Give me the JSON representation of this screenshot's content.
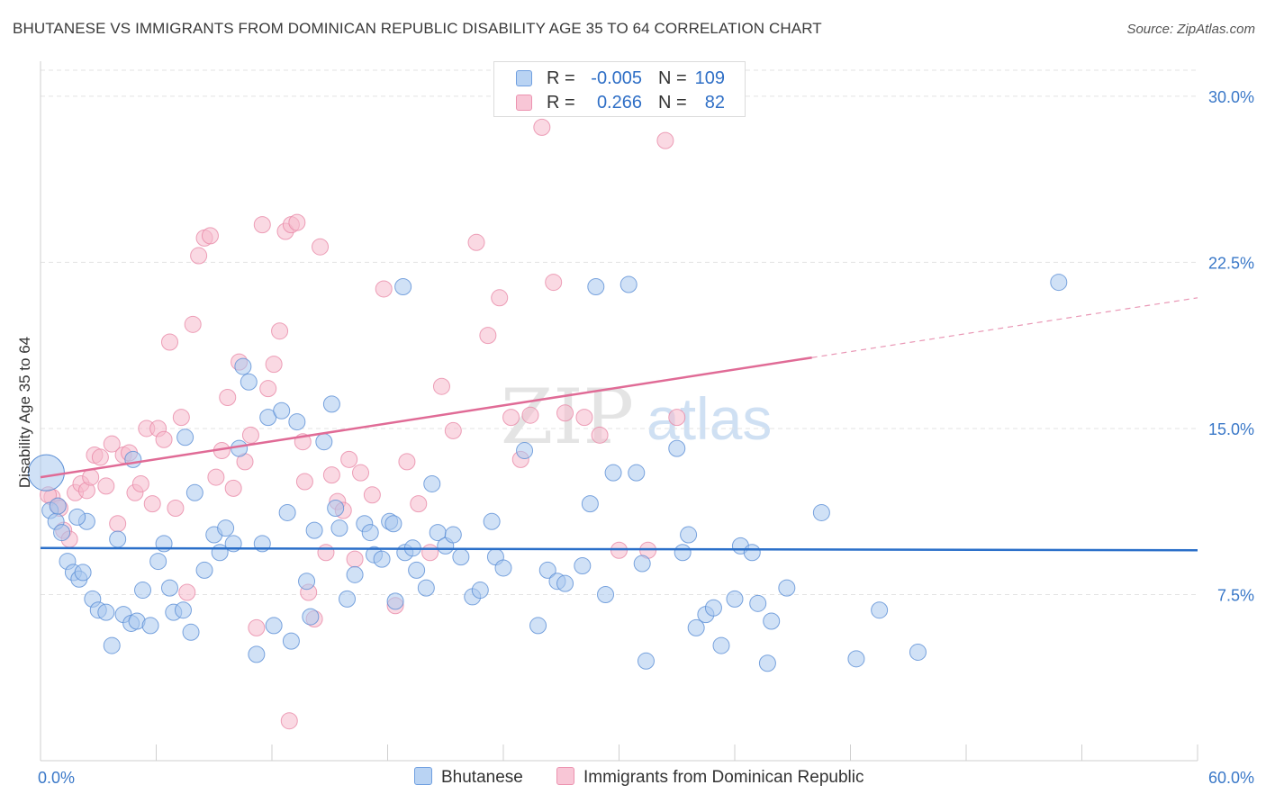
{
  "header": {
    "title": "BHUTANESE VS IMMIGRANTS FROM DOMINICAN REPUBLIC DISABILITY AGE 35 TO 64 CORRELATION CHART",
    "source": "Source: ZipAtlas.com"
  },
  "legend": {
    "rows": [
      {
        "r_label": "R =",
        "r_value": "-0.005",
        "n_label": "N =",
        "n_value": "109"
      },
      {
        "r_label": "R =",
        "r_value": "0.266",
        "n_label": "N =",
        "n_value": "82"
      }
    ]
  },
  "bottom_legend": [
    "Bhutanese",
    "Immigrants from Dominican Republic"
  ],
  "watermark": {
    "zip": "ZIP",
    "atlas": "atlas"
  },
  "colors": {
    "blue_fill": "#a9c8ef",
    "blue_stroke": "#5b8fd6",
    "blue_line": "#2a6fc9",
    "pink_fill": "#f6b9cc",
    "pink_stroke": "#e98aa8",
    "pink_line": "#e06b96",
    "tick_label": "#3a78c8",
    "grid": "#e3e3e3"
  },
  "chart_data": {
    "type": "scatter",
    "title": "BHUTANESE VS IMMIGRANTS FROM DOMINICAN REPUBLIC DISABILITY AGE 35 TO 64 CORRELATION CHART",
    "xlabel": "",
    "ylabel": "Disability Age 35 to 64",
    "xlim": [
      0,
      60
    ],
    "ylim": [
      0,
      31.5
    ],
    "x_tick_labels": [
      "0.0%",
      "60.0%"
    ],
    "y_ticks": [
      7.5,
      15.0,
      22.5,
      30.0
    ],
    "y_tick_labels": [
      "7.5%",
      "15.0%",
      "22.5%",
      "30.0%"
    ],
    "grid": "horizontal dashed",
    "legend_placement": "top-center",
    "series": [
      {
        "name": "Bhutanese",
        "r": -0.005,
        "n": 109,
        "trend": {
          "x": [
            0,
            60
          ],
          "y": [
            9.6,
            9.5
          ],
          "dashed_from": null
        },
        "points": [
          [
            0.5,
            11.3
          ],
          [
            0.8,
            10.8
          ],
          [
            1.1,
            10.3
          ],
          [
            1.4,
            9.0
          ],
          [
            1.7,
            8.5
          ],
          [
            2.0,
            8.2
          ],
          [
            2.2,
            8.5
          ],
          [
            2.7,
            7.3
          ],
          [
            3.0,
            6.8
          ],
          [
            3.4,
            6.7
          ],
          [
            3.7,
            5.2
          ],
          [
            4.0,
            10.0
          ],
          [
            4.3,
            6.6
          ],
          [
            4.7,
            6.2
          ],
          [
            5.0,
            6.3
          ],
          [
            5.3,
            7.7
          ],
          [
            5.7,
            6.1
          ],
          [
            6.1,
            9.0
          ],
          [
            6.4,
            9.8
          ],
          [
            6.7,
            7.8
          ],
          [
            6.9,
            6.7
          ],
          [
            7.4,
            6.8
          ],
          [
            7.8,
            5.8
          ],
          [
            8.0,
            12.1
          ],
          [
            8.5,
            8.6
          ],
          [
            9.0,
            10.2
          ],
          [
            9.3,
            9.4
          ],
          [
            9.6,
            10.5
          ],
          [
            10.0,
            9.8
          ],
          [
            10.3,
            14.1
          ],
          [
            10.8,
            17.1
          ],
          [
            11.2,
            4.8
          ],
          [
            11.5,
            9.8
          ],
          [
            11.8,
            15.5
          ],
          [
            12.1,
            6.1
          ],
          [
            12.5,
            15.8
          ],
          [
            12.8,
            11.2
          ],
          [
            13.0,
            5.4
          ],
          [
            13.3,
            15.3
          ],
          [
            13.8,
            8.1
          ],
          [
            14.0,
            6.5
          ],
          [
            14.2,
            10.4
          ],
          [
            14.7,
            14.4
          ],
          [
            15.1,
            16.1
          ],
          [
            15.3,
            11.4
          ],
          [
            15.5,
            10.5
          ],
          [
            15.9,
            7.3
          ],
          [
            16.3,
            8.4
          ],
          [
            16.8,
            10.7
          ],
          [
            17.1,
            10.3
          ],
          [
            17.3,
            9.3
          ],
          [
            17.7,
            9.1
          ],
          [
            18.1,
            10.8
          ],
          [
            18.3,
            10.7
          ],
          [
            18.4,
            7.2
          ],
          [
            18.9,
            9.4
          ],
          [
            19.3,
            9.6
          ],
          [
            19.5,
            8.6
          ],
          [
            20.0,
            7.8
          ],
          [
            20.3,
            12.5
          ],
          [
            20.6,
            10.3
          ],
          [
            21.0,
            9.7
          ],
          [
            21.4,
            10.2
          ],
          [
            21.8,
            9.2
          ],
          [
            22.4,
            7.4
          ],
          [
            22.8,
            7.7
          ],
          [
            23.4,
            10.8
          ],
          [
            23.6,
            9.2
          ],
          [
            24.0,
            8.7
          ],
          [
            25.1,
            14.0
          ],
          [
            25.8,
            6.1
          ],
          [
            26.3,
            8.6
          ],
          [
            26.8,
            8.1
          ],
          [
            27.2,
            8.0
          ],
          [
            28.1,
            8.8
          ],
          [
            28.5,
            11.6
          ],
          [
            29.3,
            7.5
          ],
          [
            29.7,
            13.0
          ],
          [
            30.5,
            21.5
          ],
          [
            30.9,
            13.0
          ],
          [
            31.2,
            8.9
          ],
          [
            31.4,
            4.5
          ],
          [
            33.0,
            14.1
          ],
          [
            33.3,
            9.4
          ],
          [
            33.6,
            10.2
          ],
          [
            34.0,
            6.0
          ],
          [
            34.5,
            6.6
          ],
          [
            34.9,
            6.9
          ],
          [
            35.3,
            5.2
          ],
          [
            36.0,
            7.3
          ],
          [
            36.3,
            9.7
          ],
          [
            36.9,
            9.4
          ],
          [
            37.2,
            7.1
          ],
          [
            37.7,
            4.4
          ],
          [
            37.9,
            6.3
          ],
          [
            38.7,
            7.8
          ],
          [
            40.5,
            11.2
          ],
          [
            42.3,
            4.6
          ],
          [
            43.5,
            6.8
          ],
          [
            45.5,
            4.9
          ],
          [
            52.8,
            21.6
          ],
          [
            28.8,
            21.4
          ],
          [
            18.8,
            21.4
          ],
          [
            10.5,
            17.8
          ],
          [
            7.5,
            14.6
          ],
          [
            4.8,
            13.6
          ],
          [
            2.4,
            10.8
          ],
          [
            1.9,
            11.0
          ],
          [
            0.9,
            11.5
          ]
        ]
      },
      {
        "name": "Immigrants from Dominican Republic",
        "r": 0.266,
        "n": 82,
        "trend": {
          "x": [
            0,
            40,
            60
          ],
          "y": [
            12.8,
            18.2,
            20.9
          ],
          "dashed_from": 40
        },
        "points": [
          [
            0.6,
            11.9
          ],
          [
            0.9,
            11.5
          ],
          [
            1.2,
            10.4
          ],
          [
            1.5,
            10.0
          ],
          [
            1.8,
            12.1
          ],
          [
            2.1,
            12.5
          ],
          [
            2.4,
            12.2
          ],
          [
            2.8,
            13.8
          ],
          [
            3.1,
            13.7
          ],
          [
            3.4,
            12.4
          ],
          [
            3.7,
            14.3
          ],
          [
            4.0,
            10.7
          ],
          [
            4.3,
            13.8
          ],
          [
            4.6,
            13.9
          ],
          [
            4.9,
            12.1
          ],
          [
            5.2,
            12.5
          ],
          [
            5.5,
            15.0
          ],
          [
            5.8,
            11.6
          ],
          [
            6.1,
            15.0
          ],
          [
            6.4,
            14.5
          ],
          [
            6.7,
            18.9
          ],
          [
            7.0,
            11.4
          ],
          [
            7.3,
            15.5
          ],
          [
            7.6,
            7.6
          ],
          [
            7.9,
            19.7
          ],
          [
            8.2,
            22.8
          ],
          [
            8.5,
            23.6
          ],
          [
            8.8,
            23.7
          ],
          [
            9.1,
            12.8
          ],
          [
            9.4,
            14.0
          ],
          [
            9.7,
            16.4
          ],
          [
            10.0,
            12.3
          ],
          [
            10.3,
            18.0
          ],
          [
            10.6,
            13.5
          ],
          [
            10.9,
            14.7
          ],
          [
            11.2,
            6.0
          ],
          [
            11.5,
            24.2
          ],
          [
            11.8,
            16.8
          ],
          [
            12.1,
            17.9
          ],
          [
            12.4,
            19.4
          ],
          [
            12.7,
            23.9
          ],
          [
            13.0,
            24.2
          ],
          [
            13.3,
            24.3
          ],
          [
            13.6,
            14.4
          ],
          [
            13.9,
            7.6
          ],
          [
            14.2,
            6.4
          ],
          [
            14.5,
            23.2
          ],
          [
            14.8,
            9.4
          ],
          [
            15.1,
            12.9
          ],
          [
            15.4,
            11.7
          ],
          [
            15.7,
            11.3
          ],
          [
            16.0,
            13.6
          ],
          [
            16.3,
            9.1
          ],
          [
            16.6,
            13.0
          ],
          [
            17.2,
            12.0
          ],
          [
            17.8,
            21.3
          ],
          [
            18.4,
            7.0
          ],
          [
            19.0,
            13.5
          ],
          [
            19.6,
            11.6
          ],
          [
            20.2,
            9.4
          ],
          [
            20.8,
            16.9
          ],
          [
            21.4,
            14.9
          ],
          [
            22.6,
            23.4
          ],
          [
            23.2,
            19.2
          ],
          [
            23.8,
            20.9
          ],
          [
            24.4,
            15.5
          ],
          [
            24.9,
            13.6
          ],
          [
            25.4,
            15.6
          ],
          [
            26.0,
            28.6
          ],
          [
            26.6,
            21.6
          ],
          [
            27.2,
            15.7
          ],
          [
            28.2,
            15.5
          ],
          [
            29.0,
            14.7
          ],
          [
            30.0,
            9.5
          ],
          [
            31.5,
            9.5
          ],
          [
            32.4,
            28.0
          ],
          [
            33.0,
            15.5
          ],
          [
            12.9,
            1.8
          ],
          [
            13.7,
            12.6
          ],
          [
            2.6,
            12.8
          ],
          [
            1.0,
            11.4
          ],
          [
            0.4,
            12.0
          ]
        ]
      }
    ]
  }
}
